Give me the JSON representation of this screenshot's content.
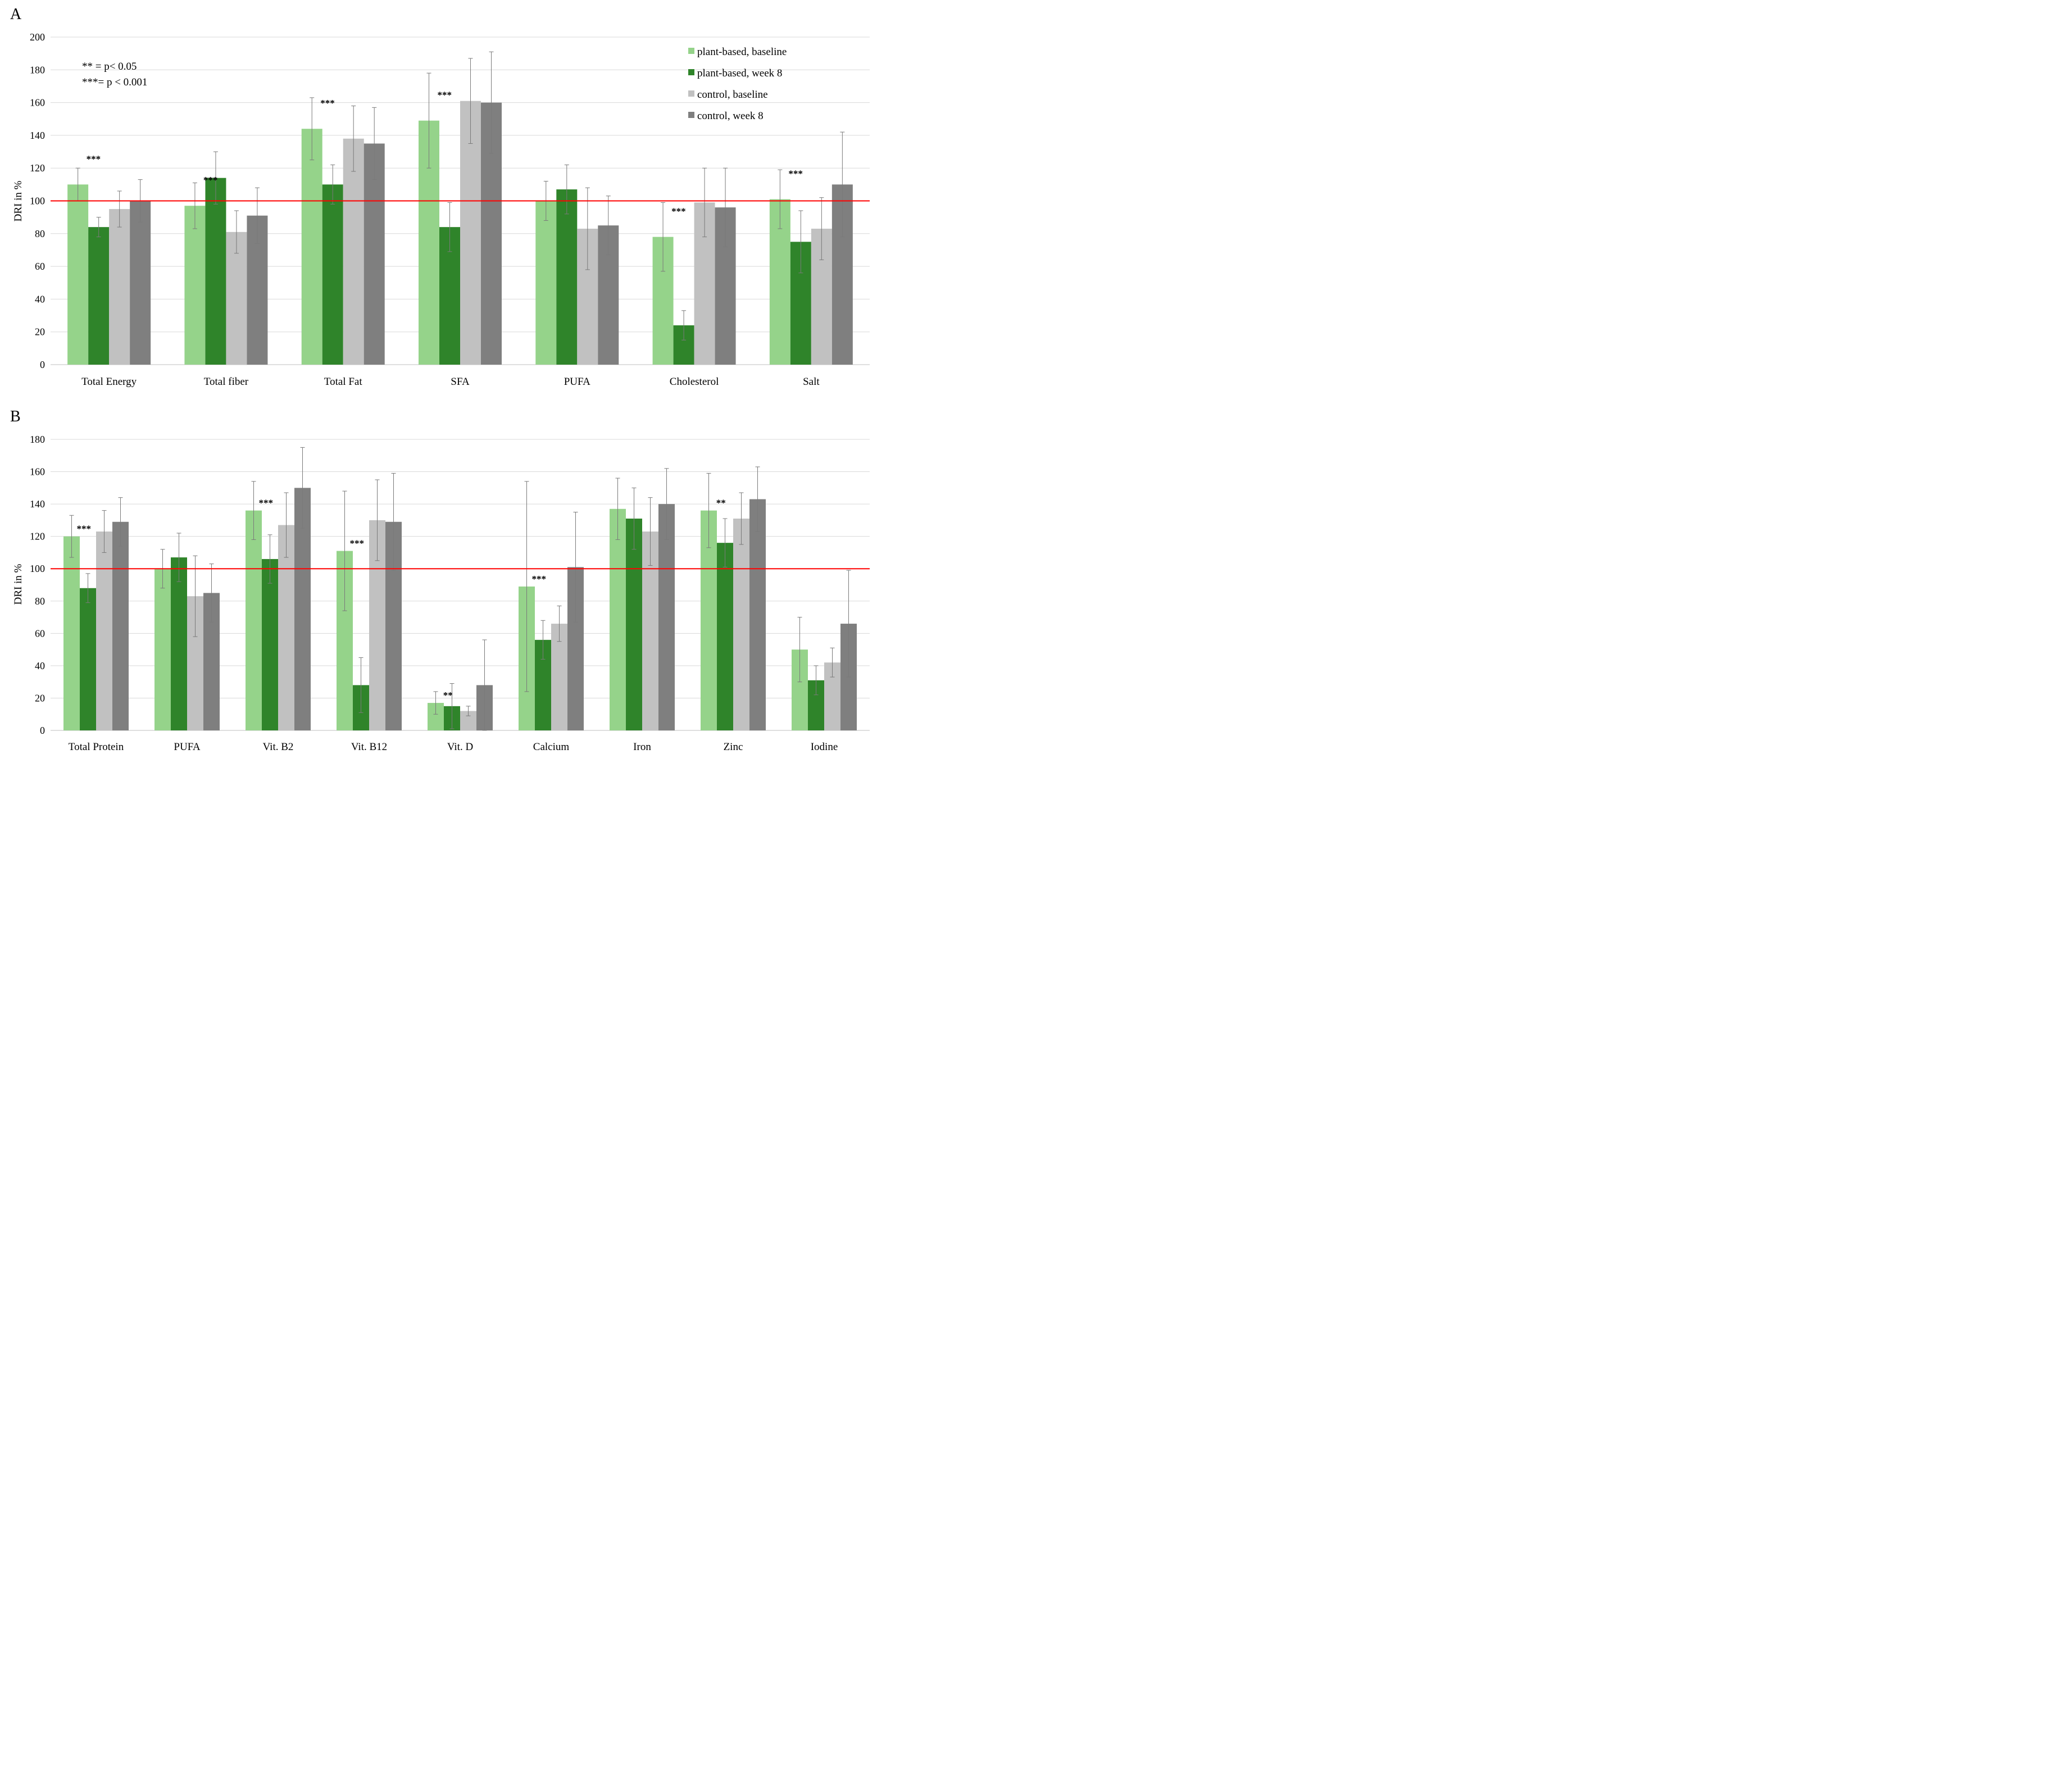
{
  "colors": {
    "plant_baseline": "#95d38a",
    "plant_week8": "#2f842a",
    "control_baseline": "#c1c1c1",
    "control_week8": "#7f7f7f",
    "reference_line": "#ff0000",
    "grid": "#d9d9d9",
    "error_bar": "#7a7a7a"
  },
  "chart_data": [
    {
      "type": "bar",
      "panel": "A",
      "ylabel": "DRI in %",
      "xlabel": "",
      "ylim": [
        0,
        200
      ],
      "yticks": [
        0,
        20,
        40,
        60,
        80,
        100,
        120,
        140,
        160,
        180,
        200
      ],
      "grid": true,
      "reference_line": 100,
      "legend": {
        "position": "top-right",
        "entries": [
          "plant-based, baseline",
          "plant-based, week 8",
          "control, baseline",
          "control, week 8"
        ]
      },
      "notes": [
        "** = p< 0.05",
        "***= p < 0.001"
      ],
      "categories": [
        "Total Energy",
        "Total fiber",
        "Total Fat",
        "SFA",
        "PUFA",
        "Cholesterol",
        "Salt"
      ],
      "series": [
        {
          "name": "plant-based, baseline",
          "values": [
            110,
            97,
            144,
            149,
            100,
            78,
            101
          ],
          "errors": [
            10,
            14,
            19,
            29,
            12,
            21,
            18
          ]
        },
        {
          "name": "plant-based, week 8",
          "values": [
            84,
            114,
            110,
            84,
            107,
            24,
            75
          ],
          "errors": [
            6,
            16,
            12,
            15,
            15,
            9,
            19
          ]
        },
        {
          "name": "control, baseline",
          "values": [
            95,
            81,
            138,
            161,
            83,
            99,
            83
          ],
          "errors": [
            11,
            13,
            20,
            26,
            25,
            21,
            19
          ]
        },
        {
          "name": "control, week 8",
          "values": [
            100,
            91,
            135,
            160,
            85,
            96,
            110
          ],
          "errors": [
            13,
            17,
            22,
            31,
            18,
            24,
            32
          ]
        }
      ],
      "significance": [
        {
          "category_index": 0,
          "label": "***"
        },
        {
          "category_index": 1,
          "label": "***"
        },
        {
          "category_index": 2,
          "label": "***"
        },
        {
          "category_index": 3,
          "label": "***"
        },
        {
          "category_index": 5,
          "label": "***"
        },
        {
          "category_index": 6,
          "label": "***"
        }
      ]
    },
    {
      "type": "bar",
      "panel": "B",
      "ylabel": "DRI in %",
      "xlabel": "",
      "ylim": [
        0,
        180
      ],
      "yticks": [
        0,
        20,
        40,
        60,
        80,
        100,
        120,
        140,
        160,
        180
      ],
      "grid": true,
      "reference_line": 100,
      "categories": [
        "Total Protein",
        "PUFA",
        "Vit. B2",
        "Vit. B12",
        "Vit. D",
        "Calcium",
        "Iron",
        "Zinc",
        "Iodine"
      ],
      "series": [
        {
          "name": "plant-based, baseline",
          "values": [
            120,
            100,
            136,
            111,
            17,
            89,
            137,
            136,
            50
          ],
          "errors": [
            13,
            12,
            18,
            37,
            7,
            65,
            19,
            23,
            20
          ]
        },
        {
          "name": "plant-based, week 8",
          "values": [
            88,
            107,
            106,
            28,
            15,
            56,
            131,
            116,
            31
          ],
          "errors": [
            9,
            15,
            15,
            17,
            14,
            12,
            19,
            15,
            9
          ]
        },
        {
          "name": "control, baseline",
          "values": [
            123,
            83,
            127,
            130,
            12,
            66,
            123,
            131,
            42
          ],
          "errors": [
            13,
            25,
            20,
            25,
            3,
            11,
            21,
            16,
            9
          ]
        },
        {
          "name": "control, week 8",
          "values": [
            129,
            85,
            150,
            129,
            28,
            101,
            140,
            143,
            66
          ],
          "errors": [
            15,
            18,
            25,
            30,
            28,
            34,
            22,
            20,
            33
          ]
        }
      ],
      "significance": [
        {
          "category_index": 0,
          "label": "***"
        },
        {
          "category_index": 2,
          "label": "***"
        },
        {
          "category_index": 3,
          "label": "***"
        },
        {
          "category_index": 4,
          "label": "**"
        },
        {
          "category_index": 5,
          "label": "***"
        },
        {
          "category_index": 7,
          "label": "**"
        }
      ]
    }
  ]
}
